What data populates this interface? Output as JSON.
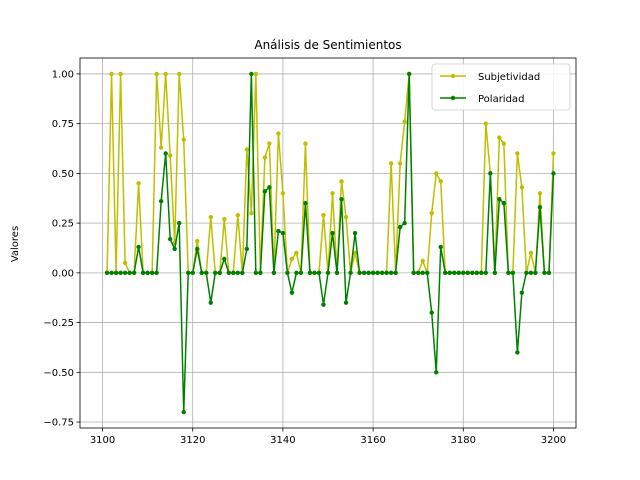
{
  "chart_data": {
    "type": "line",
    "title": "Análisis de Sentimientos",
    "xlabel": "",
    "ylabel": "Valores",
    "xlim": [
      3095,
      3205
    ],
    "ylim": [
      -0.78,
      1.08
    ],
    "xticks": [
      3100,
      3120,
      3140,
      3160,
      3180,
      3200
    ],
    "yticks": [
      -0.75,
      -0.5,
      -0.25,
      0.0,
      0.25,
      0.5,
      0.75,
      1.0
    ],
    "ytick_labels": [
      "−0.75",
      "−0.50",
      "−0.25",
      "0.00",
      "0.25",
      "0.50",
      "0.75",
      "1.00"
    ],
    "grid": true,
    "legend_position": "top-right",
    "x": [
      3101,
      3102,
      3103,
      3104,
      3105,
      3106,
      3107,
      3108,
      3109,
      3110,
      3111,
      3112,
      3113,
      3114,
      3115,
      3116,
      3117,
      3118,
      3119,
      3120,
      3121,
      3122,
      3123,
      3124,
      3125,
      3126,
      3127,
      3128,
      3129,
      3130,
      3131,
      3132,
      3133,
      3134,
      3135,
      3136,
      3137,
      3138,
      3139,
      3140,
      3141,
      3142,
      3143,
      3144,
      3145,
      3146,
      3147,
      3148,
      3149,
      3150,
      3151,
      3152,
      3153,
      3154,
      3155,
      3156,
      3157,
      3158,
      3159,
      3160,
      3161,
      3162,
      3163,
      3164,
      3165,
      3166,
      3167,
      3168,
      3169,
      3170,
      3171,
      3172,
      3173,
      3174,
      3175,
      3176,
      3177,
      3178,
      3179,
      3180,
      3181,
      3182,
      3183,
      3184,
      3185,
      3186,
      3187,
      3188,
      3189,
      3190,
      3191,
      3192,
      3193,
      3194,
      3195,
      3196,
      3197,
      3198,
      3199,
      3200
    ],
    "series": [
      {
        "name": "Subjetividad",
        "color": "#bfbf00",
        "values": [
          0,
          1.0,
          0,
          1.0,
          0.05,
          0,
          0,
          0.45,
          0,
          0,
          0,
          1.0,
          0.63,
          1.0,
          0.59,
          0.15,
          1.0,
          0.67,
          0,
          0,
          0.16,
          0,
          0,
          0.28,
          0,
          0,
          0.27,
          0,
          0,
          0.29,
          0,
          0.62,
          0.3,
          1.0,
          0,
          0.58,
          0.65,
          0,
          0.7,
          0.4,
          0,
          0.07,
          0.1,
          0,
          0.65,
          0,
          0,
          0,
          0.29,
          0,
          0.4,
          0,
          0.46,
          0.28,
          0,
          0.1,
          0,
          0,
          0,
          0,
          0,
          0,
          0,
          0.55,
          0,
          0.55,
          0.76,
          1.0,
          0,
          0,
          0.06,
          0,
          0.3,
          0.5,
          0.46,
          0,
          0,
          0,
          0,
          0,
          0,
          0,
          0,
          0,
          0.75,
          0.5,
          0,
          0.68,
          0.65,
          0,
          0,
          0.6,
          0.43,
          0,
          0.1,
          0,
          0.4,
          0,
          0,
          0.6
        ]
      },
      {
        "name": "Polaridad",
        "color": "#008000",
        "values": [
          0,
          0,
          0,
          0,
          0,
          0,
          0,
          0.13,
          0,
          0,
          0,
          0,
          0.36,
          0.6,
          0.17,
          0.12,
          0.25,
          -0.7,
          0,
          0,
          0.12,
          0,
          0,
          -0.15,
          0,
          0,
          0.07,
          0,
          0,
          0,
          0,
          0.12,
          1.0,
          0,
          0,
          0.41,
          0.43,
          0,
          0.21,
          0.2,
          0,
          -0.1,
          0,
          0,
          0.35,
          0,
          0,
          0,
          -0.16,
          0,
          0.2,
          0,
          0.37,
          -0.15,
          0,
          0.2,
          0,
          0,
          0,
          0,
          0,
          0,
          0,
          0,
          0,
          0.23,
          0.25,
          1.0,
          0,
          0,
          0,
          0,
          -0.2,
          -0.5,
          0.13,
          0,
          0,
          0,
          0,
          0,
          0,
          0,
          0,
          0,
          0,
          0.5,
          0,
          0.37,
          0.35,
          0,
          0,
          -0.4,
          -0.1,
          0,
          0,
          0,
          0.33,
          0,
          0,
          0.5
        ]
      }
    ]
  }
}
